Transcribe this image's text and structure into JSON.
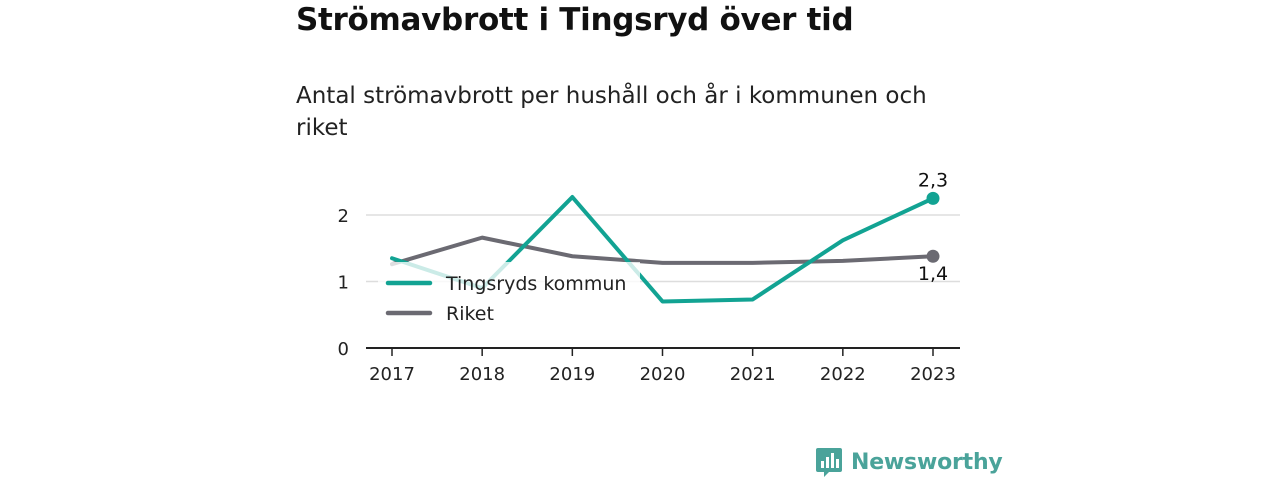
{
  "colors": {
    "tingsryd": "#12a393",
    "riket": "#6b6a72",
    "grid": "#dddddd",
    "axis": "#222222",
    "brand": "#4aa39a"
  },
  "brand": {
    "name": "Newsworthy",
    "icon": "newsworthy-logo-icon"
  },
  "chart_data": {
    "type": "line",
    "title": "Strömavbrott i Tingsryd över tid",
    "subtitle": "Antal strömavbrott per hushåll och år i kommunen och riket",
    "x": [
      "2017",
      "2018",
      "2019",
      "2020",
      "2021",
      "2022",
      "2023"
    ],
    "y_ticks": [
      "0",
      "1",
      "2"
    ],
    "ylim": [
      0,
      2.5
    ],
    "grid": true,
    "legend_position": "inside-left",
    "series": [
      {
        "name": "Tingsryds kommun",
        "values": [
          1.35,
          0.9,
          2.27,
          0.7,
          0.73,
          1.62,
          2.25
        ],
        "end_label": "2,3"
      },
      {
        "name": "Riket",
        "values": [
          1.26,
          1.66,
          1.38,
          1.28,
          1.28,
          1.31,
          1.38
        ],
        "end_label": "1,4"
      }
    ]
  }
}
